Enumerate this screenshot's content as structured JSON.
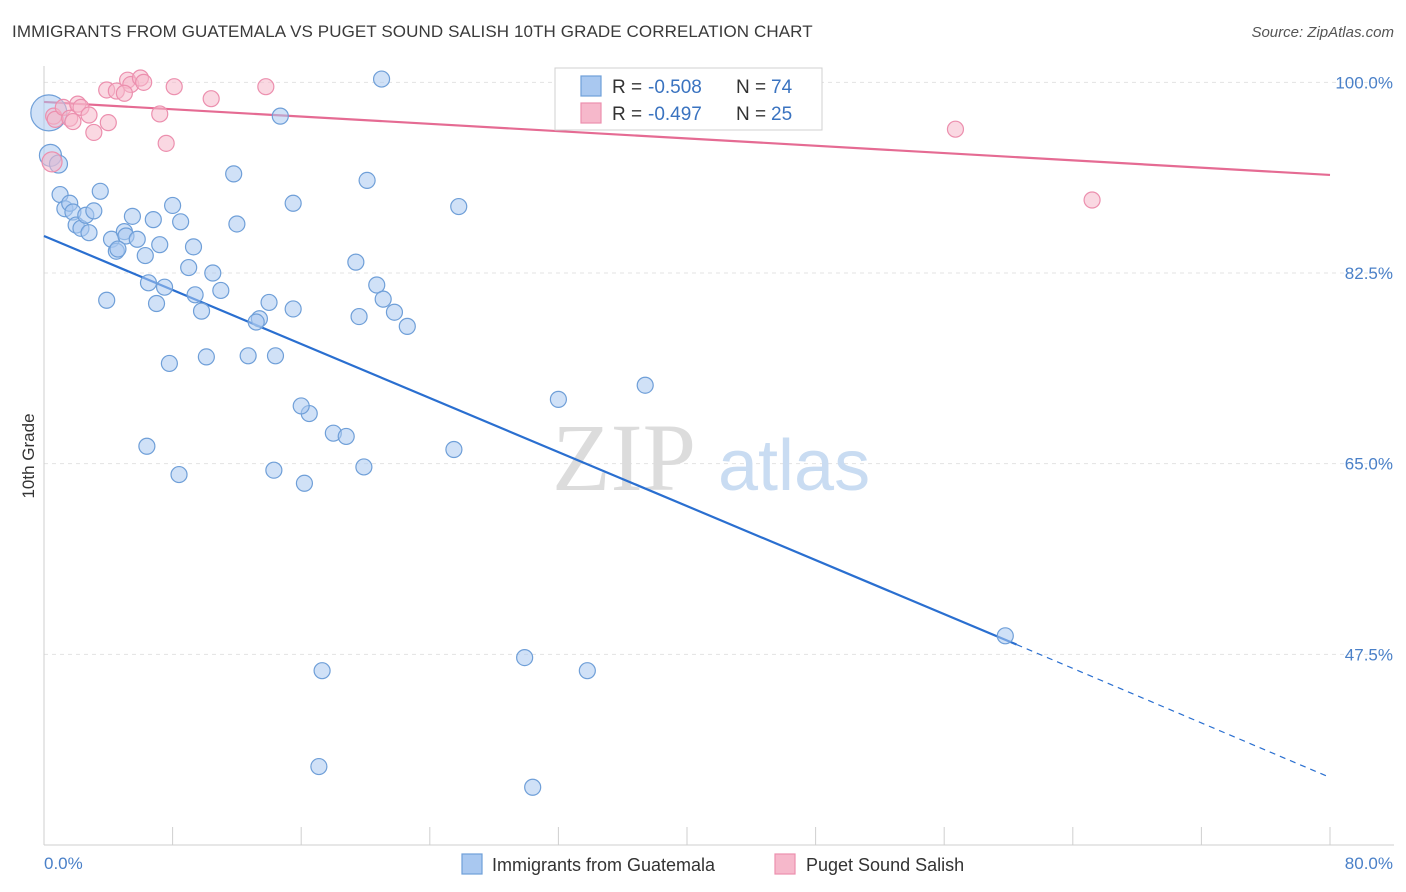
{
  "title": "IMMIGRANTS FROM GUATEMALA VS PUGET SOUND SALISH 10TH GRADE CORRELATION CHART",
  "source": "Source: ZipAtlas.com",
  "watermark": {
    "zip": "ZIP",
    "atlas": "atlas"
  },
  "colors": {
    "blue_fill": "#a9c8f0",
    "blue_stroke": "#6f9fd8",
    "blue_line": "#2a6fd0",
    "pink_fill": "#f6b8cb",
    "pink_stroke": "#ec8fae",
    "pink_line": "#e56b93",
    "tick_text": "#4a80c8",
    "grid": "#e3e3e3"
  },
  "legend": {
    "rows": [
      {
        "r_label": "R =",
        "r_value": "-0.508",
        "n_label": "N =",
        "n_value": "74",
        "color": "blue"
      },
      {
        "r_label": "R =",
        "r_value": "-0.497",
        "n_label": "N =",
        "n_value": "25",
        "color": "pink"
      }
    ]
  },
  "chart_data": {
    "type": "scatter",
    "xlabel": "",
    "ylabel": "10th Grade",
    "xlim": [
      0,
      80
    ],
    "ylim": [
      30,
      101.5
    ],
    "x_tick_labels": [
      "0.0%",
      "80.0%"
    ],
    "y_ticks": [
      47.5,
      65.0,
      82.5,
      100.0
    ],
    "y_tick_labels": [
      "47.5%",
      "65.0%",
      "82.5%",
      "100.0%"
    ],
    "grid": true,
    "legend_placement": "bottom",
    "series": [
      {
        "name": "Immigrants from Guatemala",
        "color": "blue",
        "trend": {
          "x": [
            0,
            60.5
          ],
          "y": [
            85.9,
            48.4
          ],
          "dashed_extension_to": [
            80,
            36.2
          ]
        },
        "points": [
          [
            0.3,
            97.2,
            18
          ],
          [
            0.4,
            93.3,
            11
          ],
          [
            0.9,
            92.5,
            9
          ],
          [
            1.0,
            89.7,
            8
          ],
          [
            1.3,
            88.4,
            8
          ],
          [
            1.6,
            88.9,
            8
          ],
          [
            1.8,
            88.1,
            8
          ],
          [
            2.0,
            86.9,
            8
          ],
          [
            2.3,
            86.6,
            8
          ],
          [
            2.6,
            87.8,
            8
          ],
          [
            2.8,
            86.2,
            8
          ],
          [
            3.1,
            88.2,
            8
          ],
          [
            3.5,
            90.0,
            8
          ],
          [
            4.2,
            85.6,
            8
          ],
          [
            4.5,
            84.5,
            8
          ],
          [
            5.0,
            86.3,
            8
          ],
          [
            5.1,
            85.9,
            8
          ],
          [
            5.5,
            87.7,
            8
          ],
          [
            5.8,
            85.6,
            8
          ],
          [
            6.3,
            84.1,
            8
          ],
          [
            6.5,
            81.6,
            8
          ],
          [
            6.8,
            87.4,
            8
          ],
          [
            7.2,
            85.1,
            8
          ],
          [
            7.5,
            81.2,
            8
          ],
          [
            8.0,
            88.7,
            8
          ],
          [
            8.5,
            87.2,
            8
          ],
          [
            9.0,
            83.0,
            8
          ],
          [
            9.4,
            80.5,
            8
          ],
          [
            9.8,
            79.0,
            8
          ],
          [
            10.5,
            82.5,
            8
          ],
          [
            11.0,
            80.9,
            8
          ],
          [
            3.9,
            80.0,
            8
          ],
          [
            7.8,
            74.2,
            8
          ],
          [
            10.1,
            74.8,
            8
          ],
          [
            12.7,
            74.9,
            8
          ],
          [
            14.4,
            74.9,
            8
          ],
          [
            13.4,
            78.3,
            8
          ],
          [
            14.0,
            79.8,
            8
          ],
          [
            13.2,
            78.0,
            8
          ],
          [
            15.5,
            79.2,
            8
          ],
          [
            11.8,
            91.6,
            8
          ],
          [
            14.7,
            96.9,
            8
          ],
          [
            15.5,
            88.9,
            8
          ],
          [
            14.3,
            64.4,
            8
          ],
          [
            16.2,
            63.2,
            8
          ],
          [
            16.5,
            69.6,
            8
          ],
          [
            16.0,
            70.3,
            8
          ],
          [
            18.0,
            67.8,
            8
          ],
          [
            18.8,
            67.5,
            8
          ],
          [
            19.9,
            64.7,
            8
          ],
          [
            19.6,
            78.5,
            8
          ],
          [
            19.4,
            83.5,
            8
          ],
          [
            20.7,
            81.4,
            8
          ],
          [
            21.1,
            80.1,
            8
          ],
          [
            21.8,
            78.9,
            8
          ],
          [
            22.6,
            77.6,
            8
          ],
          [
            20.1,
            91.0,
            8
          ],
          [
            21.0,
            100.3,
            8
          ],
          [
            25.5,
            66.3,
            8
          ],
          [
            25.8,
            88.6,
            8
          ],
          [
            32.0,
            70.9,
            8
          ],
          [
            37.4,
            72.2,
            8
          ],
          [
            59.8,
            49.2,
            8
          ],
          [
            17.3,
            46.0,
            8
          ],
          [
            29.9,
            47.2,
            8
          ],
          [
            33.8,
            46.0,
            8
          ],
          [
            17.1,
            37.2,
            8
          ],
          [
            30.4,
            35.3,
            8
          ],
          [
            6.4,
            66.6,
            8
          ],
          [
            8.4,
            64.0,
            8
          ],
          [
            7.0,
            79.7,
            8
          ],
          [
            4.6,
            84.7,
            8
          ],
          [
            9.3,
            84.9,
            8
          ],
          [
            12.0,
            87.0,
            8
          ]
        ]
      },
      {
        "name": "Puget Sound Salish",
        "color": "pink",
        "trend": {
          "x": [
            0,
            80
          ],
          "y": [
            98.2,
            91.5
          ]
        },
        "points": [
          [
            0.5,
            92.7,
            10
          ],
          [
            0.6,
            96.9,
            8
          ],
          [
            0.7,
            96.6,
            8
          ],
          [
            1.2,
            97.7,
            8
          ],
          [
            1.6,
            96.7,
            8
          ],
          [
            1.8,
            96.4,
            8
          ],
          [
            2.1,
            98.0,
            8
          ],
          [
            2.3,
            97.7,
            8
          ],
          [
            2.8,
            97.0,
            8
          ],
          [
            3.1,
            95.4,
            8
          ],
          [
            4.0,
            96.3,
            8
          ],
          [
            3.9,
            99.3,
            8
          ],
          [
            4.5,
            99.2,
            8
          ],
          [
            5.2,
            100.2,
            8
          ],
          [
            5.4,
            99.8,
            8
          ],
          [
            6.0,
            100.4,
            8
          ],
          [
            6.2,
            100.0,
            8
          ],
          [
            7.2,
            97.1,
            8
          ],
          [
            7.6,
            94.4,
            8
          ],
          [
            8.1,
            99.6,
            8
          ],
          [
            10.4,
            98.5,
            8
          ],
          [
            13.8,
            99.6,
            8
          ],
          [
            56.7,
            95.7,
            8
          ],
          [
            65.2,
            89.2,
            8
          ],
          [
            5.0,
            99.0,
            8
          ]
        ]
      }
    ]
  }
}
